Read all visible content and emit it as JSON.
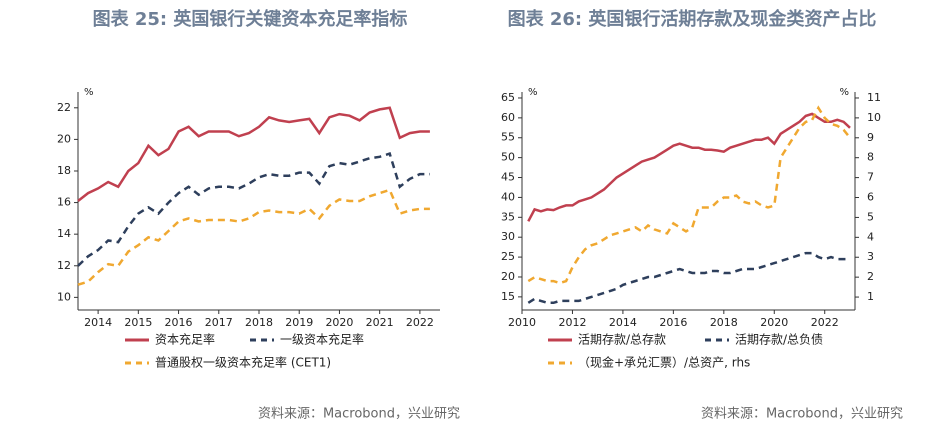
{
  "chart_data": [
    {
      "type": "line",
      "title": "图表 25: 英国银行关键资本充足率指标",
      "ylabel": "%",
      "source": "资料来源：Macrobond，兴业研究",
      "x": [
        2014,
        2014.25,
        2014.5,
        2014.75,
        2015,
        2015.25,
        2015.5,
        2015.75,
        2016,
        2016.25,
        2016.5,
        2016.75,
        2017,
        2017.25,
        2017.5,
        2017.75,
        2018,
        2018.25,
        2018.5,
        2018.75,
        2019,
        2019.25,
        2019.5,
        2019.75,
        2020,
        2020.25,
        2020.5,
        2020.75,
        2021,
        2021.25,
        2021.5,
        2021.75,
        2022,
        2022.25,
        2022.5,
        2022.75
      ],
      "xlim": [
        2014,
        2023
      ],
      "xticks": [
        {
          "value": 2014.5,
          "label": "2014"
        },
        {
          "value": 2015.5,
          "label": "2015"
        },
        {
          "value": 2016.5,
          "label": "2016"
        },
        {
          "value": 2017.5,
          "label": "2017"
        },
        {
          "value": 2018.5,
          "label": "2018"
        },
        {
          "value": 2019.5,
          "label": "2019"
        },
        {
          "value": 2020.5,
          "label": "2020"
        },
        {
          "value": 2021.5,
          "label": "2021"
        },
        {
          "value": 2022.5,
          "label": "2022"
        }
      ],
      "ylim": [
        9.2,
        23
      ],
      "yticks": [
        10,
        12,
        14,
        16,
        18,
        20,
        22
      ],
      "series": [
        {
          "name": "资本充足率",
          "color": "#c0404f",
          "style": "solid",
          "values": [
            16.1,
            16.6,
            16.9,
            17.3,
            17.0,
            18.0,
            18.5,
            19.6,
            19.0,
            19.4,
            20.5,
            20.8,
            20.2,
            20.5,
            20.5,
            20.5,
            20.2,
            20.4,
            20.8,
            21.4,
            21.2,
            21.1,
            21.2,
            21.3,
            20.4,
            21.4,
            21.6,
            21.5,
            21.2,
            21.7,
            21.9,
            22.0,
            20.1,
            20.4,
            20.5,
            20.5
          ]
        },
        {
          "name": "一级资本充足率",
          "color": "#2e3f5c",
          "style": "dashed",
          "values": [
            12.0,
            12.6,
            13.0,
            13.6,
            13.5,
            14.5,
            15.3,
            15.7,
            15.3,
            16.0,
            16.6,
            17.0,
            16.5,
            16.9,
            17.0,
            17.0,
            16.9,
            17.2,
            17.6,
            17.8,
            17.7,
            17.7,
            17.9,
            17.9,
            17.2,
            18.3,
            18.5,
            18.4,
            18.6,
            18.8,
            18.9,
            19.1,
            17.0,
            17.5,
            17.8,
            17.8
          ]
        },
        {
          "name": "普通股权一级资本充足率 (CET1)",
          "color": "#f0a830",
          "style": "dashed",
          "values": [
            10.8,
            11.0,
            11.6,
            12.1,
            12.0,
            12.9,
            13.3,
            13.8,
            13.6,
            14.2,
            14.8,
            15.0,
            14.8,
            14.9,
            14.9,
            14.9,
            14.8,
            15.0,
            15.4,
            15.5,
            15.4,
            15.4,
            15.3,
            15.6,
            15.0,
            15.8,
            16.2,
            16.1,
            16.1,
            16.4,
            16.6,
            16.8,
            15.3,
            15.5,
            15.6,
            15.6
          ]
        }
      ]
    },
    {
      "type": "line",
      "title": "图表 26: 英国银行活期存款及现金类资产占比",
      "ylabel": "%",
      "y2label": "%",
      "source": "资料来源：Macrobond，兴业研究",
      "x": [
        2010.25,
        2010.5,
        2010.75,
        2011,
        2011.25,
        2011.5,
        2011.75,
        2012,
        2012.25,
        2012.5,
        2012.75,
        2013,
        2013.25,
        2013.5,
        2013.75,
        2014,
        2014.25,
        2014.5,
        2014.75,
        2015,
        2015.25,
        2015.5,
        2015.75,
        2016,
        2016.25,
        2016.5,
        2016.75,
        2017,
        2017.25,
        2017.5,
        2017.75,
        2018,
        2018.25,
        2018.5,
        2018.75,
        2019,
        2019.25,
        2019.5,
        2019.75,
        2020,
        2020.25,
        2020.5,
        2020.75,
        2021,
        2021.25,
        2021.5,
        2021.75,
        2022,
        2022.25,
        2022.5,
        2022.75,
        2023
      ],
      "xlim": [
        2010,
        2023.2
      ],
      "xticks": [
        2010,
        2012,
        2014,
        2016,
        2018,
        2020,
        2022
      ],
      "ylim": [
        11.7,
        66.5
      ],
      "yticks": [
        15,
        20,
        25,
        30,
        35,
        40,
        45,
        50,
        55,
        60,
        65
      ],
      "y2lim": [
        0.35,
        11.3
      ],
      "y2ticks": [
        1,
        2,
        3,
        4,
        5,
        6,
        7,
        8,
        9,
        10,
        11
      ],
      "series": [
        {
          "name": "活期存款/总存款",
          "color": "#c0404f",
          "style": "solid",
          "values": [
            34,
            37,
            36.5,
            37,
            36.8,
            37.5,
            38,
            38,
            39,
            39.5,
            40,
            41,
            42,
            43.5,
            45,
            46,
            47,
            48,
            49,
            49.5,
            50,
            51,
            52,
            53,
            53.5,
            53,
            52.5,
            52.5,
            52,
            52,
            51.8,
            51.5,
            52.5,
            53,
            53.5,
            54,
            54.5,
            54.5,
            55,
            53.5,
            56,
            57,
            58,
            59,
            60.5,
            61,
            60,
            59,
            59,
            59.5,
            59,
            57.5
          ]
        },
        {
          "name": "活期存款/总负债",
          "color": "#2e3f5c",
          "style": "dashed",
          "values": [
            13.5,
            14.5,
            14,
            13.5,
            13.5,
            14,
            14,
            14,
            14,
            14.5,
            15,
            15.5,
            16,
            16.5,
            17,
            18,
            18.5,
            19,
            19.5,
            20,
            20,
            20.5,
            21,
            21.5,
            22,
            21.5,
            21,
            21,
            21,
            21.5,
            21.5,
            21,
            21,
            21.5,
            22,
            22,
            22,
            22.5,
            23,
            23.5,
            24,
            24.5,
            25,
            25.5,
            26,
            26,
            25,
            24.5,
            25,
            24.5,
            24.5,
            24.5
          ]
        },
        {
          "name": "（现金+承兑汇票）/总资产, rhs",
          "color": "#f0a830",
          "style": "dashed",
          "axis": "y2",
          "values": [
            1.8,
            2.0,
            1.9,
            1.8,
            1.8,
            1.7,
            1.8,
            2.5,
            3.0,
            3.4,
            3.6,
            3.7,
            3.9,
            4.1,
            4.2,
            4.3,
            4.4,
            4.5,
            4.3,
            4.6,
            4.4,
            4.3,
            4.2,
            4.7,
            4.5,
            4.3,
            4.5,
            5.5,
            5.5,
            5.5,
            5.8,
            6.0,
            6.0,
            6.1,
            5.8,
            5.7,
            5.8,
            5.6,
            5.5,
            5.6,
            8.0,
            8.5,
            9.0,
            9.5,
            9.8,
            9.9,
            10.5,
            10.0,
            9.7,
            9.6,
            9.4,
            9.0
          ]
        }
      ]
    }
  ]
}
